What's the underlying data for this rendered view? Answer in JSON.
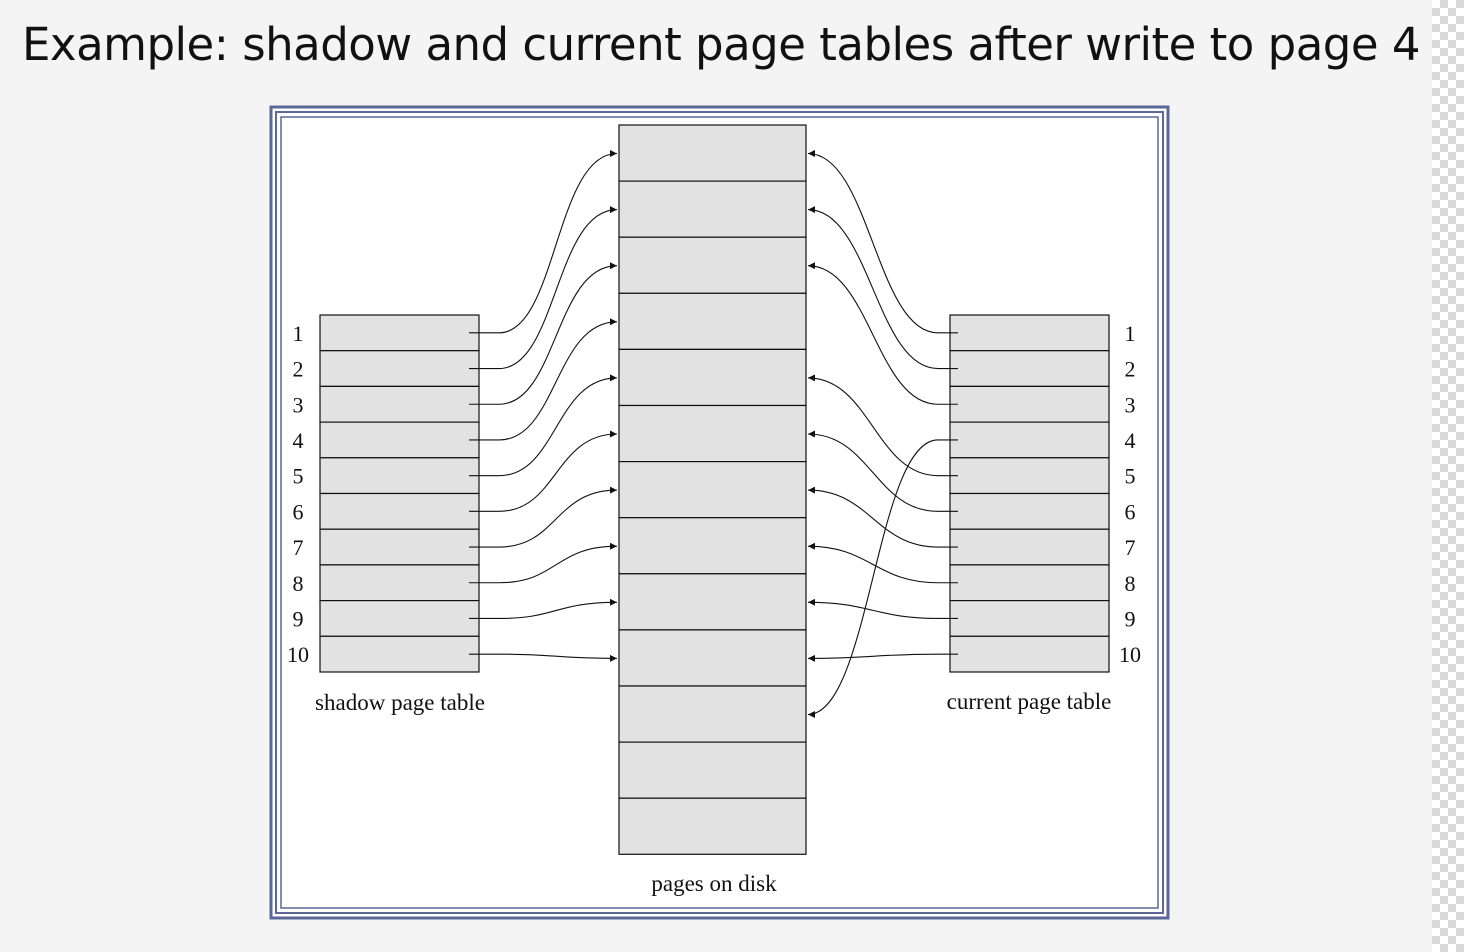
{
  "title": "Example: shadow and current page tables after write to page 4",
  "diagram": {
    "shadow_table_label": "shadow page table",
    "current_table_label": "current page table",
    "disk_label": "pages on disk",
    "row_numbers": [
      "1",
      "2",
      "3",
      "4",
      "5",
      "6",
      "7",
      "8",
      "9",
      "10"
    ],
    "disk_page_count": 13,
    "shadow_map": [
      1,
      2,
      3,
      4,
      5,
      6,
      7,
      8,
      9,
      10
    ],
    "current_map": [
      1,
      2,
      3,
      11,
      5,
      6,
      7,
      8,
      9,
      10
    ],
    "colors": {
      "cell_fill": "#e2e2e2",
      "frame": "#5b6796",
      "line": "#111111"
    }
  }
}
